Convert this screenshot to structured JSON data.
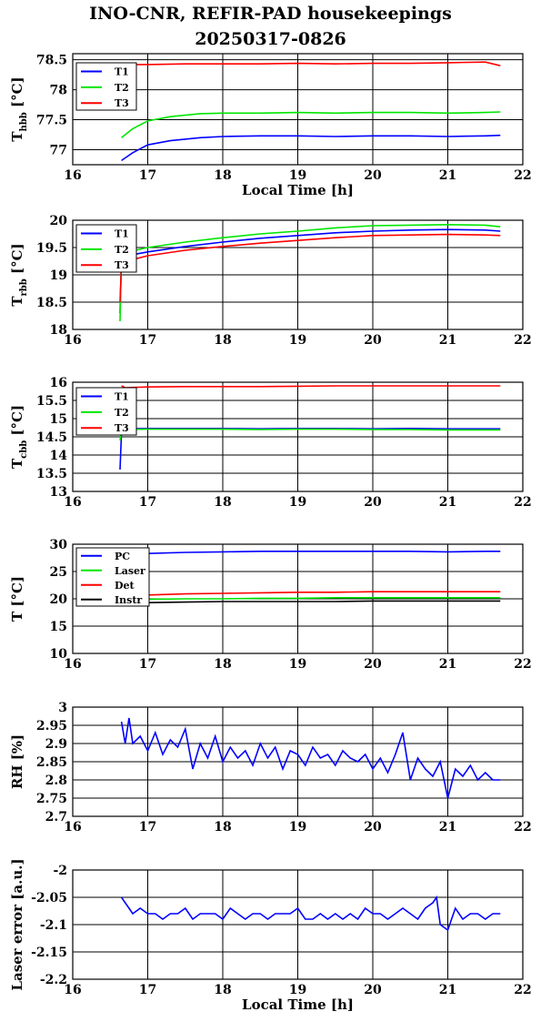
{
  "title": {
    "line1": "INO-CNR, REFIR-PAD housekeepings",
    "line2": "20250317-0826"
  },
  "colors": {
    "T1": "#0000ff",
    "T2": "#00e600",
    "T3": "#ff0000",
    "PC": "#0000ff",
    "Laser": "#00e600",
    "Det": "#ff0000",
    "Instr": "#000000"
  },
  "chart_data": [
    {
      "type": "line",
      "ylabel": {
        "main": "T",
        "sub": "hbb",
        "unit": " [°C]"
      },
      "xlabel": "Local Time [h]",
      "xlim": [
        16,
        22
      ],
      "ylim": [
        76.75,
        78.6
      ],
      "xticks": [
        16,
        17,
        18,
        19,
        20,
        21,
        22
      ],
      "yticks": [
        "77",
        "77.5",
        "78",
        "78.5"
      ],
      "ytick_values": [
        77,
        77.5,
        78,
        78.5
      ],
      "grid": true,
      "legend": "top-left",
      "series": [
        {
          "name": "T1",
          "color": "#0000ff",
          "x": [
            16.65,
            16.8,
            17.0,
            17.3,
            17.7,
            18.0,
            18.5,
            19.0,
            19.5,
            20.0,
            20.5,
            21.0,
            21.5,
            21.7
          ],
          "y": [
            76.82,
            76.95,
            77.08,
            77.15,
            77.2,
            77.22,
            77.23,
            77.23,
            77.22,
            77.23,
            77.23,
            77.22,
            77.23,
            77.24
          ]
        },
        {
          "name": "T2",
          "color": "#00e600",
          "x": [
            16.65,
            16.8,
            17.0,
            17.3,
            17.7,
            18.0,
            18.5,
            19.0,
            19.5,
            20.0,
            20.5,
            21.0,
            21.5,
            21.7
          ],
          "y": [
            77.2,
            77.35,
            77.48,
            77.55,
            77.6,
            77.61,
            77.61,
            77.62,
            77.61,
            77.62,
            77.62,
            77.61,
            77.62,
            77.63
          ]
        },
        {
          "name": "T3",
          "color": "#ff0000",
          "x": [
            16.65,
            16.7,
            17.0,
            17.5,
            18.0,
            18.5,
            19.0,
            19.5,
            20.0,
            20.5,
            21.0,
            21.5,
            21.7
          ],
          "y": [
            78.3,
            78.42,
            78.42,
            78.43,
            78.43,
            78.43,
            78.44,
            78.43,
            78.44,
            78.44,
            78.45,
            78.46,
            78.4
          ]
        }
      ]
    },
    {
      "type": "line",
      "ylabel": {
        "main": "T",
        "sub": "rbb",
        "unit": " [°C]"
      },
      "xlabel": "",
      "xlim": [
        16,
        22
      ],
      "ylim": [
        18,
        20
      ],
      "xticks": [
        16,
        17,
        18,
        19,
        20,
        21,
        22
      ],
      "yticks": [
        "18",
        "18.5",
        "19",
        "19.5",
        "20"
      ],
      "ytick_values": [
        18,
        18.5,
        19,
        19.5,
        20
      ],
      "grid": true,
      "legend": "top-left",
      "series": [
        {
          "name": "T1",
          "color": "#0000ff",
          "x": [
            16.63,
            16.65,
            16.8,
            17.0,
            17.5,
            18.0,
            18.5,
            19.0,
            19.5,
            20.0,
            20.5,
            21.0,
            21.5,
            21.7
          ],
          "y": [
            18.3,
            19.3,
            19.37,
            19.42,
            19.52,
            19.6,
            19.67,
            19.72,
            19.77,
            19.8,
            19.82,
            19.83,
            19.82,
            19.8
          ]
        },
        {
          "name": "T2",
          "color": "#00e600",
          "x": [
            16.63,
            16.65,
            16.8,
            17.0,
            17.5,
            18.0,
            18.5,
            19.0,
            19.5,
            20.0,
            20.5,
            21.0,
            21.5,
            21.7
          ],
          "y": [
            18.15,
            19.38,
            19.44,
            19.5,
            19.6,
            19.68,
            19.75,
            19.8,
            19.86,
            19.9,
            19.91,
            19.92,
            19.91,
            19.88
          ]
        },
        {
          "name": "T3",
          "color": "#ff0000",
          "x": [
            16.63,
            16.65,
            16.8,
            17.0,
            17.5,
            18.0,
            18.5,
            19.0,
            19.5,
            20.0,
            20.5,
            21.0,
            21.5,
            21.7
          ],
          "y": [
            18.5,
            19.2,
            19.28,
            19.35,
            19.45,
            19.52,
            19.58,
            19.63,
            19.68,
            19.72,
            19.73,
            19.74,
            19.73,
            19.72
          ]
        }
      ]
    },
    {
      "type": "line",
      "ylabel": {
        "main": "T",
        "sub": "cbb",
        "unit": " [°C]"
      },
      "xlabel": "",
      "xlim": [
        16,
        22
      ],
      "ylim": [
        13,
        16
      ],
      "xticks": [
        16,
        17,
        18,
        19,
        20,
        21,
        22
      ],
      "yticks": [
        "13",
        "13.5",
        "14",
        "14.5",
        "15",
        "15.5",
        "16"
      ],
      "ytick_values": [
        13,
        13.5,
        14,
        14.5,
        15,
        15.5,
        16
      ],
      "grid": true,
      "legend": "top-left",
      "series": [
        {
          "name": "T1",
          "color": "#0000ff",
          "x": [
            16.63,
            16.65,
            16.7,
            17.0,
            17.5,
            18.0,
            18.5,
            19.0,
            19.5,
            20.0,
            20.5,
            21.0,
            21.5,
            21.7
          ],
          "y": [
            13.6,
            14.6,
            14.72,
            14.73,
            14.73,
            14.73,
            14.72,
            14.73,
            14.73,
            14.72,
            14.73,
            14.72,
            14.72,
            14.72
          ]
        },
        {
          "name": "T2",
          "color": "#00e600",
          "x": [
            16.63,
            16.65,
            16.7,
            17.0,
            17.5,
            18.0,
            18.5,
            19.0,
            19.5,
            20.0,
            20.5,
            21.0,
            21.5,
            21.7
          ],
          "y": [
            14.4,
            14.65,
            14.7,
            14.71,
            14.71,
            14.71,
            14.7,
            14.71,
            14.71,
            14.7,
            14.7,
            14.69,
            14.69,
            14.69
          ]
        },
        {
          "name": "T3",
          "color": "#ff0000",
          "x": [
            16.65,
            16.7,
            17.0,
            17.5,
            18.0,
            18.5,
            19.0,
            19.5,
            20.0,
            20.5,
            21.0,
            21.5,
            21.7
          ],
          "y": [
            15.9,
            15.85,
            15.87,
            15.88,
            15.88,
            15.88,
            15.89,
            15.9,
            15.9,
            15.9,
            15.9,
            15.9,
            15.9
          ]
        }
      ]
    },
    {
      "type": "line",
      "ylabel": {
        "main": "T",
        "sub": "",
        "unit": " [°C]"
      },
      "xlabel": "",
      "xlim": [
        16,
        22
      ],
      "ylim": [
        10,
        30
      ],
      "xticks": [
        16,
        17,
        18,
        19,
        20,
        21,
        22
      ],
      "yticks": [
        "10",
        "15",
        "20",
        "25",
        "30"
      ],
      "ytick_values": [
        10,
        15,
        20,
        25,
        30
      ],
      "grid": true,
      "legend": "top-left",
      "series": [
        {
          "name": "PC",
          "color": "#0000ff",
          "x": [
            16.65,
            17.0,
            17.5,
            18.0,
            18.5,
            19.0,
            19.5,
            20.0,
            20.5,
            21.0,
            21.5,
            21.7
          ],
          "y": [
            28.0,
            28.3,
            28.5,
            28.6,
            28.7,
            28.7,
            28.7,
            28.7,
            28.7,
            28.6,
            28.7,
            28.7
          ]
        },
        {
          "name": "Laser",
          "color": "#00e600",
          "x": [
            16.65,
            17.0,
            17.5,
            18.0,
            18.5,
            19.0,
            19.5,
            20.0,
            20.5,
            21.0,
            21.5,
            21.7
          ],
          "y": [
            19.9,
            19.9,
            20.0,
            20.0,
            20.1,
            20.1,
            20.2,
            20.2,
            20.2,
            20.2,
            20.2,
            20.2
          ]
        },
        {
          "name": "Det",
          "color": "#ff0000",
          "x": [
            16.65,
            17.0,
            17.5,
            18.0,
            18.5,
            19.0,
            19.5,
            20.0,
            20.5,
            21.0,
            21.5,
            21.7
          ],
          "y": [
            20.5,
            20.7,
            20.9,
            21.0,
            21.1,
            21.2,
            21.2,
            21.3,
            21.3,
            21.3,
            21.3,
            21.3
          ]
        },
        {
          "name": "Instr",
          "color": "#000000",
          "x": [
            16.65,
            17.0,
            17.5,
            18.0,
            18.5,
            19.0,
            19.5,
            20.0,
            20.5,
            21.0,
            21.5,
            21.7
          ],
          "y": [
            19.2,
            19.3,
            19.4,
            19.5,
            19.5,
            19.5,
            19.5,
            19.6,
            19.6,
            19.6,
            19.6,
            19.6
          ]
        }
      ]
    },
    {
      "type": "line",
      "ylabel": {
        "main": "RH [%]",
        "sub": "",
        "unit": ""
      },
      "xlabel": "",
      "xlim": [
        16,
        22
      ],
      "ylim": [
        2.7,
        3.0
      ],
      "xticks": [
        16,
        17,
        18,
        19,
        20,
        21,
        22
      ],
      "yticks": [
        "2.7",
        "2.75",
        "2.8",
        "2.85",
        "2.9",
        "2.95",
        "3"
      ],
      "ytick_values": [
        2.7,
        2.75,
        2.8,
        2.85,
        2.9,
        2.95,
        3.0
      ],
      "grid": true,
      "legend": "none",
      "series": [
        {
          "color": "#0000ff",
          "x": [
            16.65,
            16.7,
            16.75,
            16.8,
            16.9,
            17.0,
            17.1,
            17.2,
            17.3,
            17.4,
            17.5,
            17.6,
            17.7,
            17.8,
            17.9,
            18.0,
            18.1,
            18.2,
            18.3,
            18.4,
            18.5,
            18.6,
            18.7,
            18.8,
            18.9,
            19.0,
            19.1,
            19.2,
            19.3,
            19.4,
            19.5,
            19.6,
            19.7,
            19.8,
            19.9,
            20.0,
            20.1,
            20.2,
            20.3,
            20.4,
            20.5,
            20.6,
            20.7,
            20.8,
            20.9,
            21.0,
            21.1,
            21.2,
            21.3,
            21.4,
            21.5,
            21.6,
            21.7
          ],
          "y": [
            2.96,
            2.9,
            2.97,
            2.9,
            2.92,
            2.88,
            2.93,
            2.87,
            2.91,
            2.89,
            2.94,
            2.83,
            2.9,
            2.86,
            2.92,
            2.85,
            2.89,
            2.86,
            2.88,
            2.84,
            2.9,
            2.86,
            2.89,
            2.83,
            2.88,
            2.87,
            2.84,
            2.89,
            2.86,
            2.87,
            2.84,
            2.88,
            2.86,
            2.85,
            2.87,
            2.83,
            2.86,
            2.82,
            2.87,
            2.93,
            2.8,
            2.86,
            2.83,
            2.81,
            2.85,
            2.75,
            2.83,
            2.81,
            2.84,
            2.8,
            2.82,
            2.8,
            2.8
          ]
        }
      ]
    },
    {
      "type": "line",
      "ylabel": {
        "main": "Laser error [a.u.]",
        "sub": "",
        "unit": ""
      },
      "xlabel": "Local Time [h]",
      "xlim": [
        16,
        22
      ],
      "ylim": [
        -2.2,
        -2.0
      ],
      "xticks": [
        16,
        17,
        18,
        19,
        20,
        21,
        22
      ],
      "yticks": [
        "-2.2",
        "-2.15",
        "-2.1",
        "-2.05",
        "-2"
      ],
      "ytick_values": [
        -2.2,
        -2.15,
        -2.1,
        -2.05,
        -2.0
      ],
      "grid": true,
      "legend": "none",
      "series": [
        {
          "color": "#0000ff",
          "x": [
            16.65,
            16.7,
            16.75,
            16.8,
            16.9,
            17.0,
            17.1,
            17.2,
            17.3,
            17.4,
            17.5,
            17.6,
            17.7,
            17.8,
            17.9,
            18.0,
            18.1,
            18.2,
            18.3,
            18.4,
            18.5,
            18.6,
            18.7,
            18.8,
            18.9,
            19.0,
            19.1,
            19.2,
            19.3,
            19.4,
            19.5,
            19.6,
            19.7,
            19.8,
            19.9,
            20.0,
            20.1,
            20.2,
            20.3,
            20.4,
            20.5,
            20.6,
            20.7,
            20.8,
            20.85,
            20.9,
            21.0,
            21.1,
            21.2,
            21.3,
            21.4,
            21.5,
            21.6,
            21.7
          ],
          "y": [
            -2.05,
            -2.06,
            -2.07,
            -2.08,
            -2.07,
            -2.08,
            -2.08,
            -2.09,
            -2.08,
            -2.08,
            -2.07,
            -2.09,
            -2.08,
            -2.08,
            -2.08,
            -2.09,
            -2.07,
            -2.08,
            -2.09,
            -2.08,
            -2.08,
            -2.09,
            -2.08,
            -2.08,
            -2.08,
            -2.07,
            -2.09,
            -2.09,
            -2.08,
            -2.09,
            -2.08,
            -2.09,
            -2.08,
            -2.09,
            -2.07,
            -2.08,
            -2.08,
            -2.09,
            -2.08,
            -2.07,
            -2.08,
            -2.09,
            -2.07,
            -2.06,
            -2.05,
            -2.1,
            -2.11,
            -2.07,
            -2.09,
            -2.08,
            -2.08,
            -2.09,
            -2.08,
            -2.08
          ]
        }
      ]
    }
  ]
}
